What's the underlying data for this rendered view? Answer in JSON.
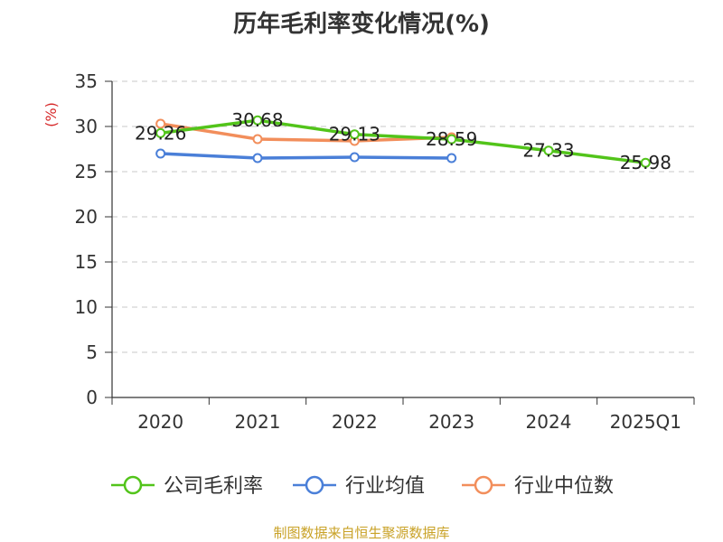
{
  "chart_data": {
    "type": "line",
    "title": "历年毛利率变化情况(%)",
    "ylabel": "(%)",
    "xlabel": "",
    "categories": [
      "2020",
      "2021",
      "2022",
      "2023",
      "2024",
      "2025Q1"
    ],
    "ylim": [
      0,
      35
    ],
    "yticks": [
      0,
      5,
      10,
      15,
      20,
      25,
      30,
      35
    ],
    "grid": true,
    "legend_position": "bottom",
    "series": [
      {
        "name": "公司毛利率",
        "color": "#52c41a",
        "values": [
          29.26,
          30.68,
          29.13,
          28.59,
          27.33,
          25.98
        ],
        "labels": [
          "29.26",
          "30.68",
          "29.13",
          "28.59",
          "27.33",
          "25.98"
        ]
      },
      {
        "name": "行业均值",
        "color": "#4a7fd8",
        "values": [
          27.0,
          26.5,
          26.6,
          26.5,
          null,
          null
        ]
      },
      {
        "name": "行业中位数",
        "color": "#f28e5b",
        "values": [
          30.3,
          28.6,
          28.4,
          28.8,
          null,
          null
        ]
      }
    ]
  },
  "source": "制图数据来自恒生聚源数据库"
}
